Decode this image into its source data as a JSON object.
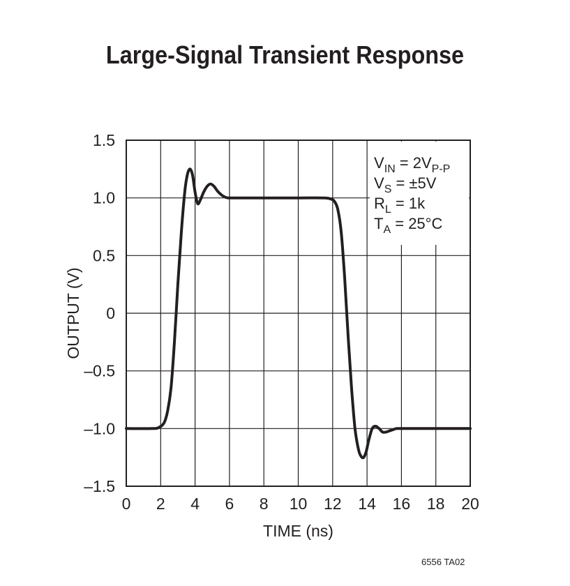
{
  "chart_data": {
    "type": "line",
    "title": "Large-Signal Transient Response",
    "xlabel": "TIME (ns)",
    "ylabel": "OUTPUT (V)",
    "xlim": [
      0,
      20
    ],
    "ylim": [
      -1.5,
      1.5
    ],
    "x_ticks": [
      0,
      2,
      4,
      6,
      8,
      10,
      12,
      14,
      16,
      18,
      20
    ],
    "y_ticks": [
      1.5,
      1.0,
      0.5,
      0,
      -0.5,
      -1.0,
      -1.5
    ],
    "y_tick_labels": [
      "1.5",
      "1.0",
      "0.5",
      "0",
      "–0.5",
      "–1.0",
      "–1.5"
    ],
    "grid": true,
    "series": [
      {
        "x": [
          0,
          1.5,
          1.9,
          2.2,
          2.4,
          2.6,
          2.8,
          3.0,
          3.2,
          3.4,
          3.55,
          3.7,
          3.85,
          4.0,
          4.15,
          4.3,
          4.5,
          4.7,
          4.9,
          5.1,
          5.3,
          5.5,
          5.7,
          5.9,
          6.1,
          6.5,
          8,
          10,
          11.5,
          11.9,
          12.1,
          12.3,
          12.5,
          12.7,
          12.9,
          13.1,
          13.3,
          13.5,
          13.65,
          13.8,
          13.95,
          14.1,
          14.3,
          14.5,
          14.7,
          14.9,
          15.1,
          15.3,
          15.5,
          15.7,
          16,
          17,
          20
        ],
        "y": [
          -1.0,
          -1.0,
          -0.99,
          -0.95,
          -0.85,
          -0.65,
          -0.25,
          0.25,
          0.7,
          1.05,
          1.2,
          1.25,
          1.2,
          1.05,
          0.95,
          0.98,
          1.05,
          1.1,
          1.12,
          1.1,
          1.06,
          1.03,
          1.01,
          1.0,
          1.0,
          1.0,
          1.0,
          1.0,
          1.0,
          0.99,
          0.97,
          0.9,
          0.7,
          0.3,
          -0.2,
          -0.65,
          -1.0,
          -1.18,
          -1.24,
          -1.25,
          -1.2,
          -1.1,
          -1.0,
          -0.98,
          -1.0,
          -1.03,
          -1.03,
          -1.02,
          -1.01,
          -1.0,
          -1.0,
          -1.0,
          -1.0
        ]
      }
    ],
    "legend_placement": "top-right",
    "conditions": [
      {
        "main": "V",
        "sub": "IN",
        "rest": " = 2V",
        "sub2": "P-P"
      },
      {
        "main": "V",
        "sub": "S",
        "rest": " = ±5V",
        "sub2": ""
      },
      {
        "main": "R",
        "sub": "L",
        "rest": " = 1k",
        "sub2": ""
      },
      {
        "main": "T",
        "sub": "A",
        "rest": " = 25°C",
        "sub2": ""
      }
    ]
  },
  "footnote": "6556 TA02",
  "colors": {
    "line": "#231f20",
    "grid": "#231f20",
    "background": "#ffffff"
  }
}
